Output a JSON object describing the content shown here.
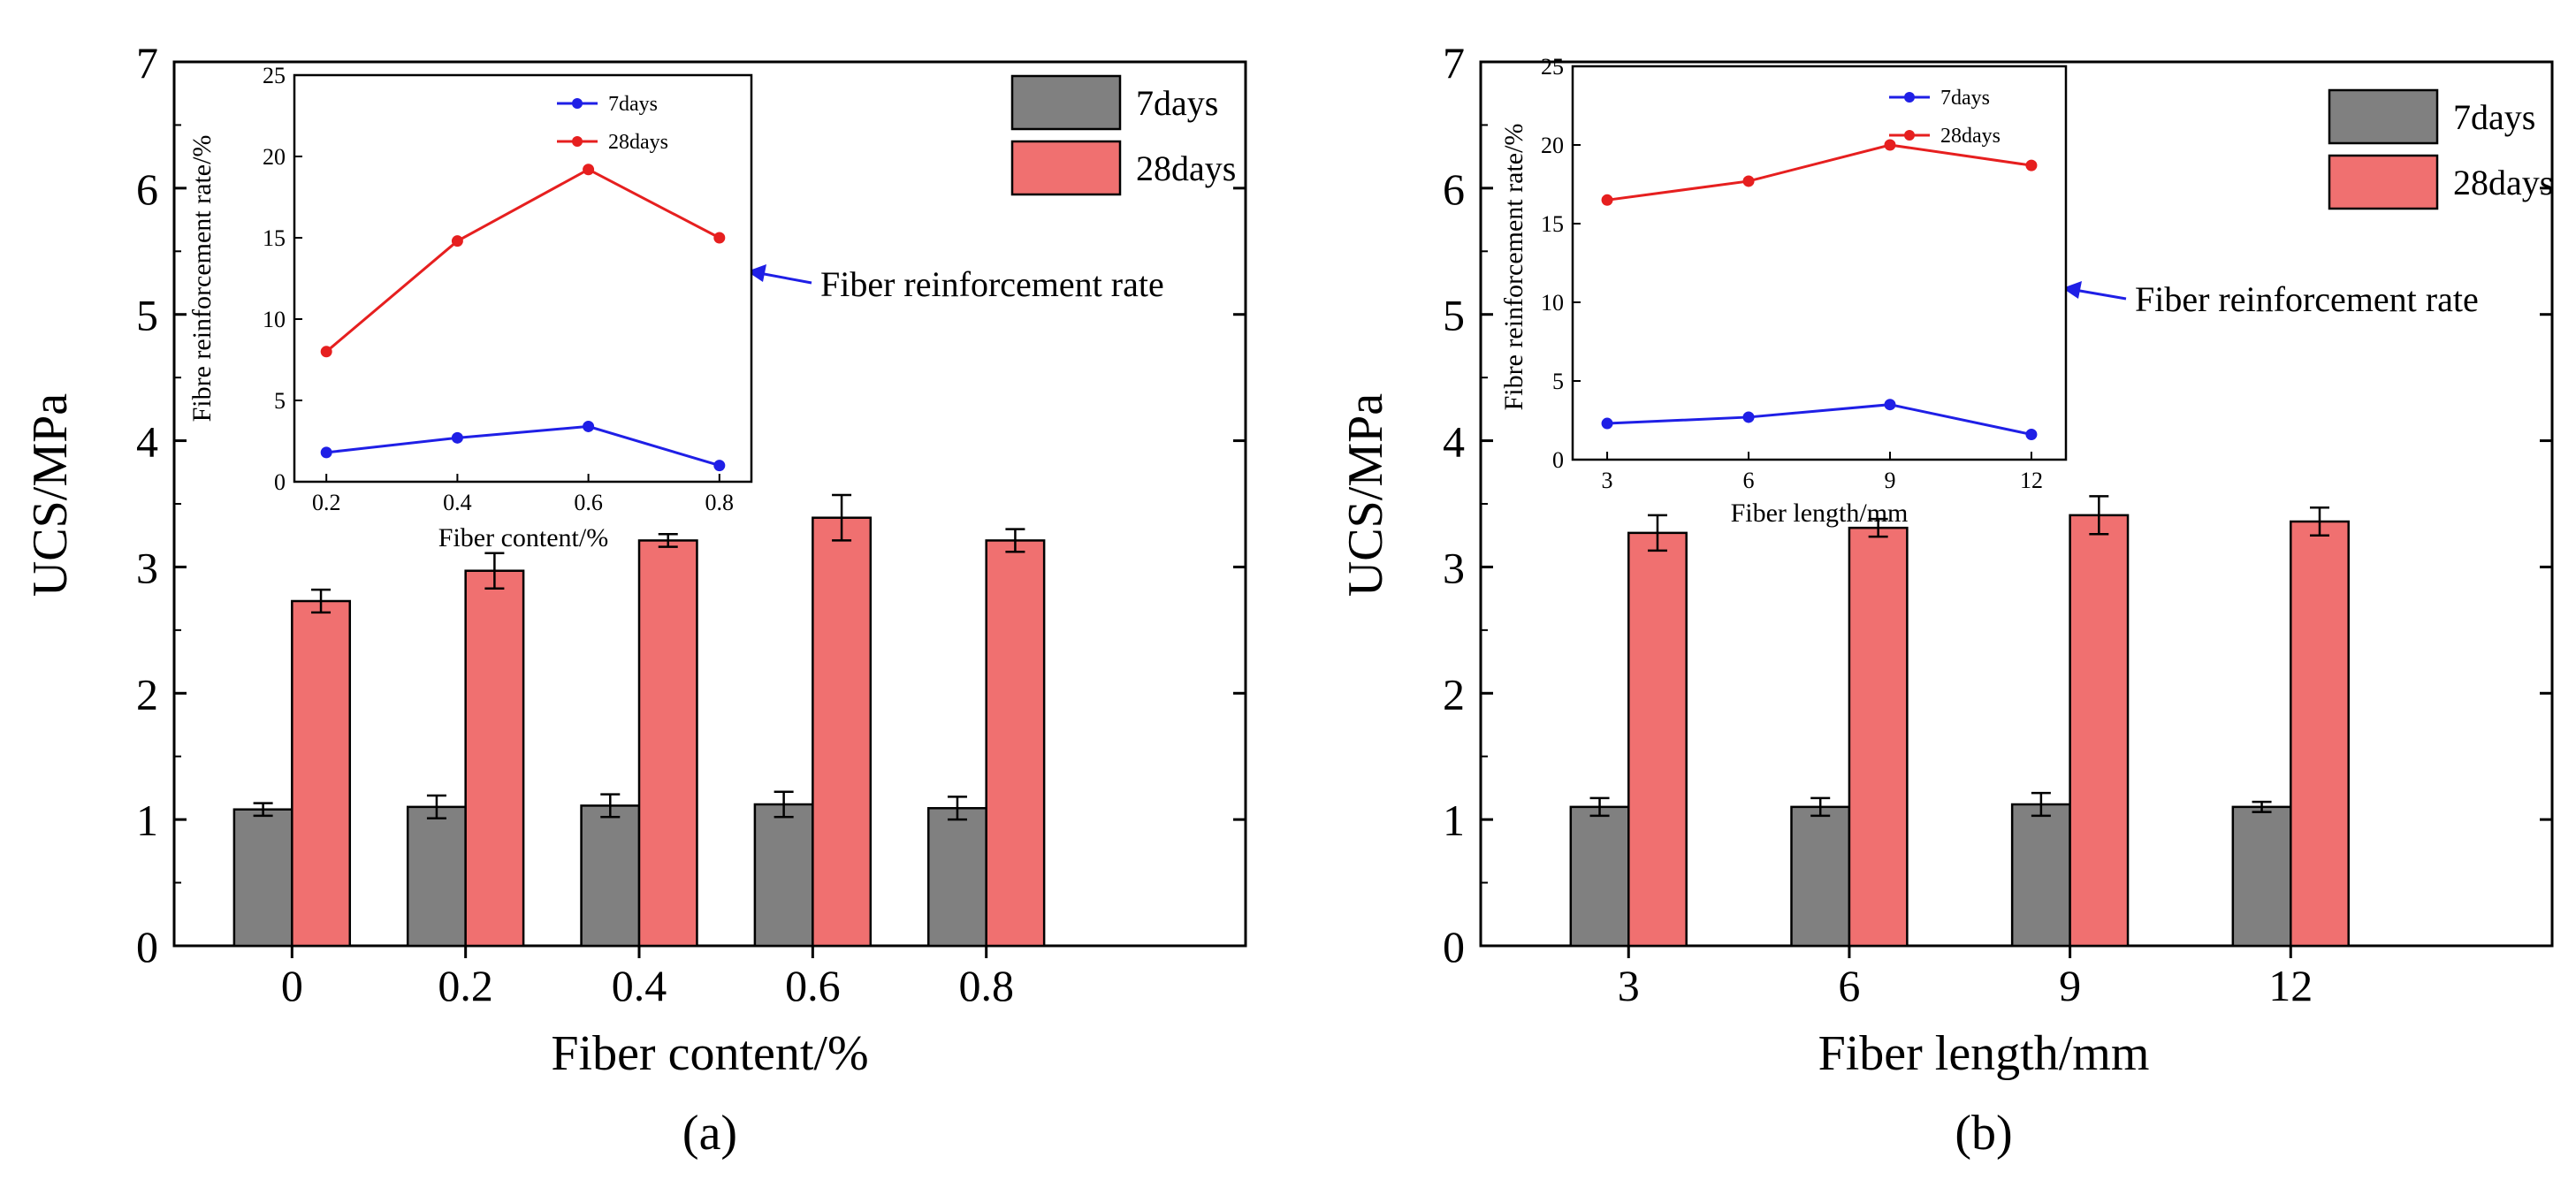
{
  "colors": {
    "bar7": "#808080",
    "bar28": "#f07070",
    "line7": "#1f1fe6",
    "line28": "#e61f1f",
    "arrow": "#1f1fe6"
  },
  "chart_data": [
    {
      "type": "bar",
      "caption": "(a)",
      "xlabel": "Fiber content/%",
      "ylabel": "UCS/MPa",
      "ylim": [
        0,
        7
      ],
      "yticks": [
        "0",
        "1",
        "2",
        "3",
        "4",
        "5",
        "6",
        "7"
      ],
      "categories": [
        "0",
        "0.2",
        "0.4",
        "0.6",
        "0.8"
      ],
      "series": [
        {
          "name": "7days",
          "values": [
            1.08,
            1.1,
            1.11,
            1.12,
            1.09
          ],
          "errors": [
            0.05,
            0.09,
            0.09,
            0.1,
            0.09
          ]
        },
        {
          "name": "28days",
          "values": [
            2.73,
            2.97,
            3.21,
            3.39,
            3.21
          ],
          "errors": [
            0.09,
            0.14,
            0.05,
            0.18,
            0.09
          ]
        }
      ],
      "legend_position": "top-right",
      "annotation": "Fiber reinforcement rate",
      "inset": {
        "type": "line",
        "xlabel": "Fiber content/%",
        "ylabel": "Fibre reinforcement rate/%",
        "ylim": [
          0,
          25
        ],
        "yticks": [
          "0",
          "5",
          "10",
          "15",
          "20",
          "25"
        ],
        "x": [
          "0.2",
          "0.4",
          "0.6",
          "0.8"
        ],
        "series": [
          {
            "name": "7days",
            "values": [
              1.8,
              2.7,
              3.4,
              1.0
            ]
          },
          {
            "name": "28days",
            "values": [
              8.0,
              14.8,
              19.2,
              15.0
            ]
          }
        ],
        "legend_position": "top-right"
      }
    },
    {
      "type": "bar",
      "caption": "(b)",
      "xlabel": "Fiber length/mm",
      "ylabel": "UCS/MPa",
      "ylim": [
        0,
        7
      ],
      "yticks": [
        "0",
        "1",
        "2",
        "3",
        "4",
        "5",
        "6",
        "7"
      ],
      "categories": [
        "3",
        "6",
        "9",
        "12"
      ],
      "series": [
        {
          "name": "7days",
          "values": [
            1.1,
            1.1,
            1.12,
            1.1
          ],
          "errors": [
            0.07,
            0.07,
            0.09,
            0.04
          ]
        },
        {
          "name": "28days",
          "values": [
            3.27,
            3.31,
            3.41,
            3.36
          ],
          "errors": [
            0.14,
            0.07,
            0.15,
            0.11
          ]
        }
      ],
      "legend_position": "top-right",
      "annotation": "Fiber reinforcement rate",
      "inset": {
        "type": "line",
        "xlabel": "Fiber length/mm",
        "ylabel": "Fibre reinforcement rate/%",
        "ylim": [
          0,
          25
        ],
        "yticks": [
          "0",
          "5",
          "10",
          "15",
          "20",
          "25"
        ],
        "x": [
          "3",
          "6",
          "9",
          "12"
        ],
        "series": [
          {
            "name": "7days",
            "values": [
              2.3,
              2.7,
              3.5,
              1.6
            ]
          },
          {
            "name": "28days",
            "values": [
              16.5,
              17.7,
              20.0,
              18.7
            ]
          }
        ],
        "legend_position": "top-right"
      }
    }
  ]
}
